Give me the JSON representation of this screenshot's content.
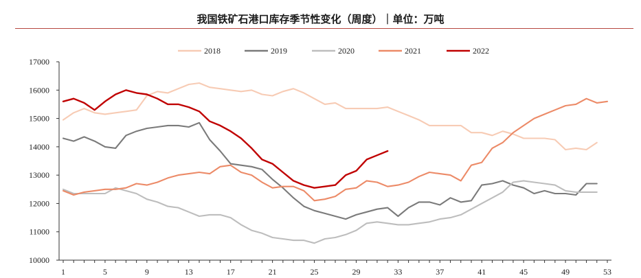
{
  "chart_data": {
    "type": "line",
    "title": "我国铁矿石港口库存季节性变化（周度）｜单位：万吨",
    "xlabel": "",
    "ylabel": "",
    "xlim": [
      1,
      53
    ],
    "ylim": [
      10000,
      17000
    ],
    "x_ticks": [
      1,
      5,
      9,
      13,
      17,
      21,
      25,
      29,
      33,
      37,
      41,
      45,
      49,
      53
    ],
    "y_ticks": [
      10000,
      11000,
      12000,
      13000,
      14000,
      15000,
      16000,
      17000
    ],
    "grid": false,
    "legend_position": "top",
    "series": [
      {
        "name": "2018",
        "color": "#f7cbb4",
        "values": [
          14950,
          15200,
          15350,
          15200,
          15150,
          15200,
          15250,
          15300,
          15800,
          15950,
          15900,
          16050,
          16200,
          16250,
          16100,
          16050,
          16000,
          15950,
          16000,
          15850,
          15800,
          15950,
          16050,
          15900,
          15700,
          15500,
          15550,
          15350,
          15350,
          15350,
          15350,
          15400,
          15250,
          15100,
          14950,
          14750,
          14750,
          14750,
          14750,
          14500,
          14500,
          14400,
          14550,
          14450,
          14300,
          14300,
          14300,
          14250,
          13900,
          13950,
          13900,
          14150
        ]
      },
      {
        "name": "2019",
        "color": "#7a7a7a",
        "values": [
          14300,
          14200,
          14350,
          14200,
          14000,
          13950,
          14400,
          14550,
          14650,
          14700,
          14750,
          14750,
          14700,
          14850,
          14250,
          13850,
          13400,
          13350,
          13300,
          13200,
          12850,
          12550,
          12200,
          11900,
          11750,
          11650,
          11550,
          11450,
          11600,
          11700,
          11800,
          11850,
          11550,
          11850,
          12050,
          12050,
          11950,
          12200,
          12050,
          12100,
          12650,
          12700,
          12800,
          12650,
          12550,
          12350,
          12450,
          12350,
          12350,
          12300,
          12700,
          12700
        ]
      },
      {
        "name": "2020",
        "color": "#bdbdbd",
        "values": [
          12500,
          12350,
          12350,
          12350,
          12350,
          12550,
          12450,
          12350,
          12150,
          12050,
          11900,
          11850,
          11700,
          11550,
          11600,
          11600,
          11500,
          11250,
          11050,
          10950,
          10800,
          10750,
          10700,
          10700,
          10600,
          10750,
          10800,
          10900,
          11050,
          11300,
          11350,
          11300,
          11250,
          11250,
          11300,
          11350,
          11450,
          11500,
          11600,
          11800,
          12000,
          12200,
          12400,
          12750,
          12800,
          12750,
          12700,
          12650,
          12450,
          12400,
          12400,
          12400
        ]
      },
      {
        "name": "2021",
        "color": "#ec8a67",
        "values": [
          12450,
          12300,
          12400,
          12450,
          12500,
          12500,
          12550,
          12700,
          12650,
          12750,
          12900,
          13000,
          13050,
          13100,
          13050,
          13300,
          13350,
          13100,
          13000,
          12750,
          12550,
          12600,
          12600,
          12450,
          12100,
          12150,
          12250,
          12500,
          12550,
          12800,
          12750,
          12600,
          12650,
          12750,
          12950,
          13100,
          13050,
          13000,
          12800,
          13350,
          13450,
          13950,
          14150,
          14500,
          14750,
          15000,
          15150,
          15300,
          15450,
          15500,
          15700,
          15550,
          15600
        ]
      },
      {
        "name": "2022",
        "color": "#c00000",
        "values": [
          15600,
          15700,
          15550,
          15300,
          15600,
          15850,
          16000,
          15900,
          15850,
          15700,
          15500,
          15500,
          15400,
          15250,
          14900,
          14750,
          14550,
          14300,
          13950,
          13550,
          13400,
          13100,
          12800,
          12650,
          12550,
          12600,
          12650,
          13000,
          13150,
          13550,
          13700,
          13850
        ]
      }
    ]
  }
}
